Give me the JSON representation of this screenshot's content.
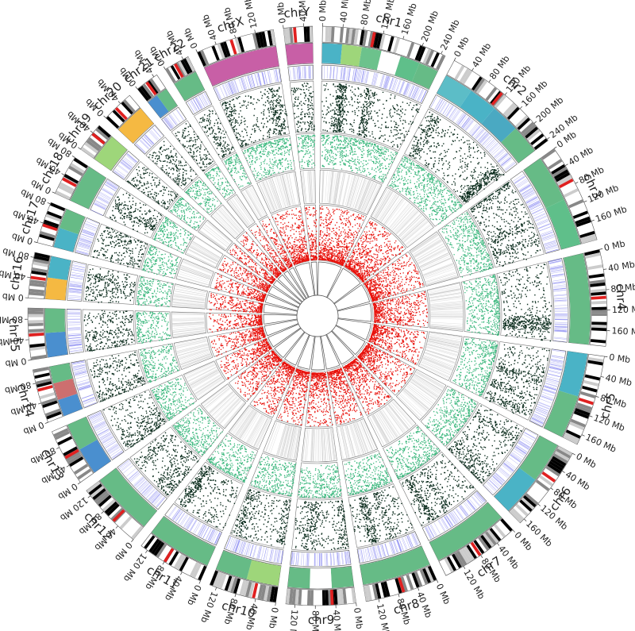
{
  "chromosomes": [
    {
      "name": "chr1",
      "length_mb": 249,
      "ticks": [
        "0 Mb",
        "40 Mb",
        "80 Mb",
        "120 Mb",
        "160 Mb",
        "200 Mb",
        "240 Mb"
      ],
      "band_colors": [
        "#4ab3c6",
        "#9ed67a",
        "#6cc28c",
        "#ffffff",
        "#5fbf8a",
        "#66bb86"
      ]
    },
    {
      "name": "chr2",
      "length_mb": 243,
      "ticks": [
        "0 Mb",
        "40 Mb",
        "80 Mb",
        "120 Mb",
        "160 Mb",
        "200 Mb",
        "240 Mb"
      ],
      "band_colors": [
        "#5cbdc7",
        "#4ab3c6",
        "#4aa9c2",
        "#66bb86"
      ]
    },
    {
      "name": "chr3",
      "length_mb": 198,
      "ticks": [
        "0 Mb",
        "40 Mb",
        "80 Mb",
        "120 Mb",
        "160 Mb"
      ],
      "band_colors": [
        "#66bb86",
        "#5fbf8a"
      ]
    },
    {
      "name": "chr4",
      "length_mb": 191,
      "ticks": [
        "0 Mb",
        "40 Mb",
        "80 Mb",
        "120 Mb",
        "160 Mb"
      ],
      "band_colors": [
        "#66bb86"
      ]
    },
    {
      "name": "chr5",
      "length_mb": 181,
      "ticks": [
        "0 Mb",
        "40 Mb",
        "80 Mb",
        "120 Mb",
        "160 Mb"
      ],
      "band_colors": [
        "#4ab3c6",
        "#66bb86"
      ]
    },
    {
      "name": "chr6",
      "length_mb": 171,
      "ticks": [
        "0 Mb",
        "40 Mb",
        "80 Mb",
        "120 Mb",
        "160 Mb"
      ],
      "band_colors": [
        "#66bb86",
        "#4ab3c6"
      ]
    },
    {
      "name": "chr7",
      "length_mb": 159,
      "ticks": [
        "0 Mb",
        "40 Mb",
        "80 Mb",
        "120 Mb"
      ],
      "band_colors": [
        "#66bb86"
      ]
    },
    {
      "name": "chr8",
      "length_mb": 145,
      "ticks": [
        "0 Mb",
        "40 Mb",
        "80 Mb",
        "120 Mb"
      ],
      "band_colors": [
        "#66bb86"
      ]
    },
    {
      "name": "chr9",
      "length_mb": 138,
      "ticks": [
        "0 Mb",
        "40 Mb",
        "80 Mb",
        "120 Mb"
      ],
      "band_colors": [
        "#66bb86",
        "#ffffff",
        "#66bb86"
      ]
    },
    {
      "name": "chr10",
      "length_mb": 134,
      "ticks": [
        "0 Mb",
        "40 Mb",
        "80 Mb",
        "120 Mb"
      ],
      "band_colors": [
        "#9ed67a",
        "#66bb86"
      ]
    },
    {
      "name": "chr11",
      "length_mb": 135,
      "ticks": [
        "0 Mb",
        "40 Mb",
        "80 Mb",
        "120 Mb"
      ],
      "band_colors": [
        "#66bb86"
      ]
    },
    {
      "name": "chr12",
      "length_mb": 133,
      "ticks": [
        "0 Mb",
        "40 Mb",
        "80 Mb",
        "120 Mb"
      ],
      "band_colors": [
        "#66bb86"
      ]
    },
    {
      "name": "chr13",
      "length_mb": 114,
      "ticks": [
        "0 Mb",
        "40 Mb",
        "80 Mb"
      ],
      "band_colors": [
        "#4a8fcf",
        "#66bb86"
      ]
    },
    {
      "name": "chr14",
      "length_mb": 107,
      "ticks": [
        "0 Mb",
        "40 Mb",
        "80 Mb"
      ],
      "band_colors": [
        "#4a8fcf",
        "#cd6f6f",
        "#66bb86"
      ]
    },
    {
      "name": "chr15",
      "length_mb": 102,
      "ticks": [
        "0 Mb",
        "40 Mb",
        "80 Mb"
      ],
      "band_colors": [
        "#4a8fcf",
        "#66bb86"
      ]
    },
    {
      "name": "chr16",
      "length_mb": 90,
      "ticks": [
        "0 Mb",
        "40 Mb",
        "80 Mb"
      ],
      "band_colors": [
        "#f5b942",
        "#4ab3c6"
      ]
    },
    {
      "name": "chr17",
      "length_mb": 83,
      "ticks": [
        "0 Mb",
        "40 Mb",
        "80 Mb"
      ],
      "band_colors": [
        "#4ab3c6",
        "#66bb86"
      ]
    },
    {
      "name": "chr18",
      "length_mb": 80,
      "ticks": [
        "0 Mb",
        "40 Mb",
        "80 Mb"
      ],
      "band_colors": [
        "#66bb86"
      ]
    },
    {
      "name": "chr19",
      "length_mb": 59,
      "ticks": [
        "0 Mb",
        "40 Mb"
      ],
      "band_colors": [
        "#9ed67a"
      ]
    },
    {
      "name": "chr20",
      "length_mb": 64,
      "ticks": [
        "0 Mb",
        "40 Mb"
      ],
      "band_colors": [
        "#f5b942"
      ]
    },
    {
      "name": "chr21",
      "length_mb": 47,
      "ticks": [
        "0 Mb",
        "40 Mb"
      ],
      "band_colors": [
        "#4a8fcf",
        "#66bb86"
      ]
    },
    {
      "name": "chr22",
      "length_mb": 51,
      "ticks": [
        "0 Mb",
        "40 Mb"
      ],
      "band_colors": [
        "#66bb86"
      ]
    },
    {
      "name": "chrX",
      "length_mb": 156,
      "ticks": [
        "0 Mb",
        "40 Mb",
        "80 Mb",
        "120 Mb"
      ],
      "band_colors": [
        "#c85fa6"
      ]
    },
    {
      "name": "chrY",
      "length_mb": 57,
      "ticks": [
        "0 Mb",
        "40 Mb"
      ],
      "band_colors": [
        "#c85fa6"
      ]
    }
  ],
  "colors": {
    "scatter_outer": "#0d2e1f",
    "scatter_green": "#3cb87e",
    "scatter_red": "#e8120c",
    "ideogram_dark": "#000000",
    "ideogram_centromere": "#e02020",
    "density_lines": "#7d7df0",
    "grid": "#777777"
  }
}
